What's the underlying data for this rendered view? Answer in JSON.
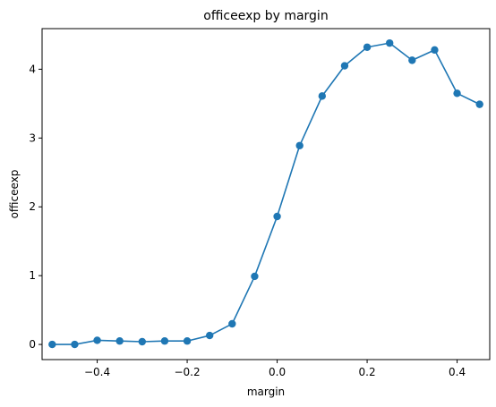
{
  "chart_data": {
    "type": "line",
    "title": "officeexp by margin",
    "xlabel": "margin",
    "ylabel": "officeexp",
    "xlim": [
      -0.5225,
      0.4725
    ],
    "ylim": [
      -0.22,
      4.59
    ],
    "xticks": [
      -0.4,
      -0.2,
      0.0,
      0.2,
      0.4
    ],
    "xtick_labels": [
      "−0.4",
      "−0.2",
      "0.0",
      "0.2",
      "0.4"
    ],
    "yticks": [
      0,
      1,
      2,
      3,
      4
    ],
    "ytick_labels": [
      "0",
      "1",
      "2",
      "3",
      "4"
    ],
    "grid": false,
    "series": [
      {
        "color": "#1f77b4",
        "marker": "circle",
        "x": [
          -0.5,
          -0.45,
          -0.4,
          -0.35,
          -0.3,
          -0.25,
          -0.2,
          -0.15,
          -0.1,
          -0.05,
          0.0,
          0.05,
          0.1,
          0.15,
          0.2,
          0.25,
          0.3,
          0.35,
          0.4,
          0.45
        ],
        "y": [
          0.0,
          0.0,
          0.06,
          0.05,
          0.04,
          0.05,
          0.05,
          0.13,
          0.3,
          0.99,
          1.86,
          2.89,
          3.61,
          4.05,
          4.32,
          4.38,
          4.13,
          4.28,
          3.65,
          3.49
        ]
      }
    ]
  }
}
